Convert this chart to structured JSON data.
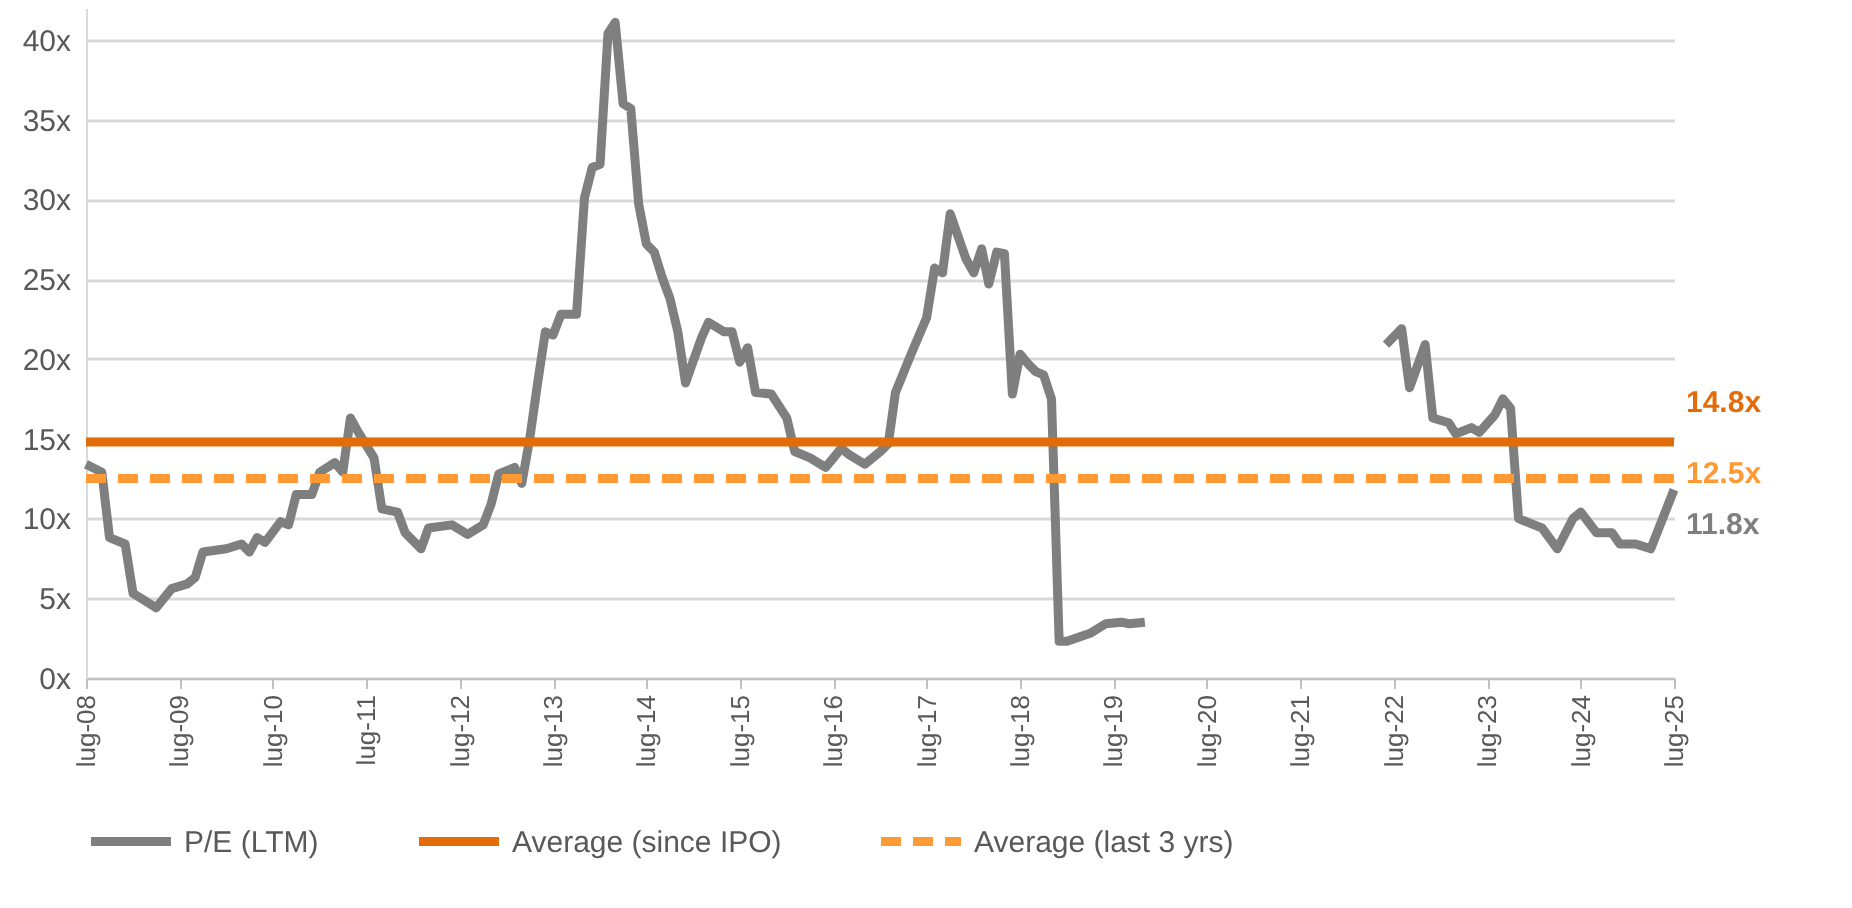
{
  "chart_data": {
    "type": "line",
    "x": [
      "2008-07",
      "2008-09",
      "2008-10",
      "2008-12",
      "2009-01",
      "2009-02",
      "2009-04",
      "2009-06",
      "2009-08",
      "2009-09",
      "2009-10",
      "2010-01",
      "2010-03",
      "2010-04",
      "2010-05",
      "2010-06",
      "2010-08",
      "2010-09",
      "2010-10",
      "2010-12",
      "2011-01",
      "2011-03",
      "2011-04",
      "2011-05",
      "2011-06",
      "2011-08",
      "2011-09",
      "2011-11",
      "2011-12",
      "2012-02",
      "2012-03",
      "2012-06",
      "2012-08",
      "2012-10",
      "2012-11",
      "2012-12",
      "2013-02",
      "2013-03",
      "2013-04",
      "2013-05",
      "2013-06",
      "2013-07",
      "2013-08",
      "2013-10",
      "2013-11",
      "2013-12",
      "2014-01",
      "2014-02",
      "2014-03",
      "2014-04",
      "2014-05",
      "2014-06",
      "2014-07",
      "2014-08",
      "2014-09",
      "2014-10",
      "2014-11",
      "2014-12",
      "2015-02",
      "2015-03",
      "2015-05",
      "2015-06",
      "2015-07",
      "2015-08",
      "2015-09",
      "2015-11",
      "2016-01",
      "2016-02",
      "2016-04",
      "2016-06",
      "2016-08",
      "2016-09",
      "2016-11",
      "2017-01",
      "2017-02",
      "2017-03",
      "2017-05",
      "2017-07",
      "2017-08",
      "2017-09",
      "2017-10",
      "2017-12",
      "2018-01",
      "2018-02",
      "2018-03",
      "2018-04",
      "2018-05",
      "2018-06",
      "2018-07",
      "2018-08",
      "2018-09",
      "2018-10",
      "2018-11",
      "2018-12",
      "2019-01",
      "2019-04",
      "2019-06",
      "2019-08",
      "2019-09",
      "2019-11",
      "2020-06",
      "2022-06",
      "2022-08",
      "2022-09",
      "2022-11",
      "2022-12",
      "2023-02",
      "2023-03",
      "2023-05",
      "2023-06",
      "2023-08",
      "2023-09",
      "2023-10",
      "2023-11",
      "2024-01",
      "2024-02",
      "2024-04",
      "2024-06",
      "2024-07",
      "2024-09",
      "2024-11",
      "2024-12",
      "2025-02",
      "2025-04",
      "2025-07"
    ],
    "series": [
      {
        "name": "P/E (LTM)",
        "color": "#7f7f7f",
        "values": [
          13.4,
          12.9,
          8.8,
          8.4,
          5.3,
          5.0,
          4.4,
          5.6,
          5.9,
          6.3,
          7.9,
          8.1,
          8.4,
          7.9,
          8.8,
          8.5,
          9.8,
          9.6,
          11.5,
          11.5,
          12.9,
          13.5,
          12.9,
          16.3,
          15.4,
          13.8,
          10.6,
          10.4,
          9.1,
          8.1,
          9.4,
          9.6,
          9.0,
          9.6,
          10.9,
          12.8,
          13.2,
          12.2,
          15.0,
          18.4,
          21.7,
          21.5,
          22.8,
          22.8,
          30.1,
          32.0,
          32.2,
          40.4,
          41.1,
          36.0,
          35.7,
          29.7,
          27.2,
          26.7,
          25.1,
          23.8,
          21.7,
          18.5,
          21.3,
          22.3,
          21.7,
          21.7,
          19.8,
          20.7,
          17.9,
          17.8,
          16.3,
          14.2,
          13.8,
          13.2,
          14.4,
          14.0,
          13.4,
          14.2,
          14.7,
          17.9,
          20.3,
          22.6,
          25.7,
          25.4,
          29.1,
          26.3,
          25.4,
          26.9,
          24.7,
          26.7,
          26.6,
          17.8,
          20.3,
          19.7,
          19.2,
          19.0,
          17.5,
          2.3,
          2.3,
          2.8,
          3.4,
          3.5,
          3.4,
          3.5,
          null,
          20.9,
          21.9,
          18.2,
          20.9,
          16.3,
          16.0,
          15.3,
          15.7,
          15.4,
          16.5,
          17.5,
          16.9,
          10.0,
          9.6,
          9.4,
          8.1,
          10.0,
          10.4,
          9.1,
          9.1,
          8.4,
          8.4,
          8.1,
          11.8
        ]
      },
      {
        "name": "Average (since IPO)",
        "color": "#e36c0a",
        "x": [
          "2008-07",
          "2025-07"
        ],
        "values": [
          14.8,
          14.8
        ],
        "line_style": "solid"
      },
      {
        "name": "Average (last 3 yrs)",
        "color": "#ff9933",
        "x": [
          "2008-07",
          "2025-07"
        ],
        "values": [
          12.5,
          12.5
        ],
        "line_style": "dashed"
      }
    ],
    "xlim": [
      "2008-07",
      "2025-07"
    ],
    "xticks": [
      {
        "value": "2008-07",
        "label": "lug-08"
      },
      {
        "value": "2009-07",
        "label": "lug-09"
      },
      {
        "value": "2010-07",
        "label": "lug-10"
      },
      {
        "value": "2011-07",
        "label": "lug-11"
      },
      {
        "value": "2012-07",
        "label": "lug-12"
      },
      {
        "value": "2013-07",
        "label": "lug-13"
      },
      {
        "value": "2014-07",
        "label": "lug-14"
      },
      {
        "value": "2015-07",
        "label": "lug-15"
      },
      {
        "value": "2016-07",
        "label": "lug-16"
      },
      {
        "value": "2017-07",
        "label": "lug-17"
      },
      {
        "value": "2018-07",
        "label": "lug-18"
      },
      {
        "value": "2019-07",
        "label": "lug-19"
      },
      {
        "value": "2020-07",
        "label": "lug-20"
      },
      {
        "value": "2021-07",
        "label": "lug-21"
      },
      {
        "value": "2022-07",
        "label": "lug-22"
      },
      {
        "value": "2023-07",
        "label": "lug-23"
      },
      {
        "value": "2024-07",
        "label": "lug-24"
      },
      {
        "value": "2025-07",
        "label": "lug-25"
      }
    ],
    "ylim": [
      0,
      42
    ],
    "yticks": [
      {
        "value": 0,
        "label": "0x"
      },
      {
        "value": 5,
        "label": "5x"
      },
      {
        "value": 10,
        "label": "10x"
      },
      {
        "value": 15,
        "label": "15x"
      },
      {
        "value": 20,
        "label": "20x"
      },
      {
        "value": 25,
        "label": "25x"
      },
      {
        "value": 30,
        "label": "30x"
      },
      {
        "value": 35,
        "label": "35x"
      },
      {
        "value": 40,
        "label": "40x"
      }
    ],
    "grid": "y",
    "legend": "bottom",
    "annotations": [
      {
        "text": "14.8x",
        "x": "2025-07",
        "y": 14.8
      },
      {
        "text": "12.5x",
        "x": "2025-07",
        "y": 12.5
      },
      {
        "text": "11.8x",
        "x": "2025-07",
        "y": 11.8
      }
    ]
  }
}
